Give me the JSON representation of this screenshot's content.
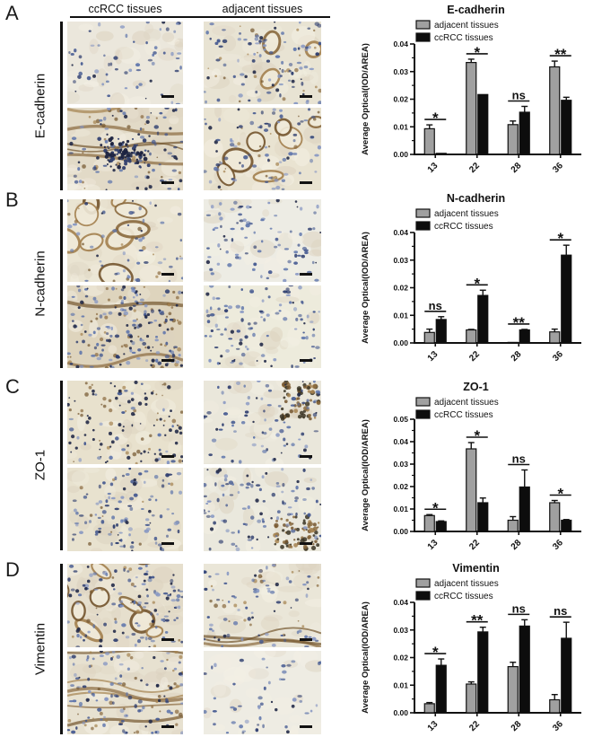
{
  "figure": {
    "column_headers": [
      "ccRCC tissues",
      "adjacent tissues"
    ],
    "panels": [
      {
        "label": "A",
        "protein": "E-cadherin"
      },
      {
        "label": "B",
        "protein": "N-cadherin"
      },
      {
        "label": "C",
        "protein": "ZO-1"
      },
      {
        "label": "D",
        "protein": "Vimentin"
      }
    ]
  },
  "colors": {
    "adjacent_bar": "#a0a0a0",
    "ccrcc_bar": "#0d0d0d",
    "axis": "#111111"
  },
  "chart_data": [
    {
      "type": "bar",
      "title": "E-cadherin",
      "ylabel": "Average Optical(IOD/AREA)",
      "ylim": [
        0,
        0.04
      ],
      "yticks": [
        "0.00",
        "0.01",
        "0.02",
        "0.03",
        "0.04"
      ],
      "categories": [
        "13",
        "22",
        "28",
        "36"
      ],
      "legend_position": "top-left-inside",
      "series": [
        {
          "name": "adjacent tissues",
          "color": "#a0a0a0",
          "values": [
            0.0093,
            0.0333,
            0.0108,
            0.0317
          ],
          "errors": [
            0.0014,
            0.0012,
            0.0013,
            0.0021
          ]
        },
        {
          "name": "ccRCC tissues",
          "color": "#0d0d0d",
          "values": [
            0.0004,
            0.0217,
            0.0153,
            0.0196
          ],
          "errors": [
            0.0,
            0.0,
            0.0021,
            0.0011
          ]
        }
      ],
      "significance": [
        "*",
        "*",
        "ns",
        "**"
      ]
    },
    {
      "type": "bar",
      "title": "N-cadherin",
      "ylabel": "Average Optical(IOD/AREA)",
      "ylim": [
        0,
        0.04
      ],
      "yticks": [
        "0.00",
        "0.01",
        "0.02",
        "0.03",
        "0.04"
      ],
      "categories": [
        "13",
        "22",
        "28",
        "36"
      ],
      "legend_position": "top-left-inside",
      "series": [
        {
          "name": "adjacent tissues",
          "color": "#a0a0a0",
          "values": [
            0.0038,
            0.0047,
            0.0002,
            0.004
          ],
          "errors": [
            0.0012,
            0.0002,
            0.0,
            0.001
          ]
        },
        {
          "name": "ccRCC tissues",
          "color": "#0d0d0d",
          "values": [
            0.0085,
            0.0172,
            0.0047,
            0.0318
          ],
          "errors": [
            0.001,
            0.0019,
            0.0002,
            0.0036
          ]
        }
      ],
      "significance": [
        "ns",
        "*",
        "**",
        "*"
      ]
    },
    {
      "type": "bar",
      "title": "ZO-1",
      "ylabel": "Average Optical(IOD/AREA)",
      "ylim": [
        0,
        0.05
      ],
      "yticks": [
        "0.00",
        "0.01",
        "0.02",
        "0.03",
        "0.04",
        "0.05"
      ],
      "categories": [
        "13",
        "22",
        "28",
        "36"
      ],
      "legend_position": "top-left-inside",
      "series": [
        {
          "name": "adjacent tissues",
          "color": "#a0a0a0",
          "values": [
            0.0071,
            0.0368,
            0.005,
            0.0128
          ],
          "errors": [
            0.0004,
            0.0028,
            0.0016,
            0.001
          ]
        },
        {
          "name": "ccRCC tissues",
          "color": "#0d0d0d",
          "values": [
            0.0044,
            0.0128,
            0.0198,
            0.005
          ],
          "errors": [
            0.0003,
            0.0021,
            0.0076,
            0.0003
          ]
        }
      ],
      "significance": [
        "*",
        "*",
        "ns",
        "*"
      ]
    },
    {
      "type": "bar",
      "title": "Vimentin",
      "ylabel": "Average Optical(IOD/AREA)",
      "ylim": [
        0,
        0.04
      ],
      "yticks": [
        "0.00",
        "0.01",
        "0.02",
        "0.03",
        "0.04"
      ],
      "categories": [
        "13",
        "22",
        "28",
        "36"
      ],
      "legend_position": "top-left-inside",
      "series": [
        {
          "name": "adjacent tissues",
          "color": "#a0a0a0",
          "values": [
            0.0033,
            0.0104,
            0.0167,
            0.0047
          ],
          "errors": [
            0.0004,
            0.0008,
            0.0016,
            0.0019
          ]
        },
        {
          "name": "ccRCC tissues",
          "color": "#0d0d0d",
          "values": [
            0.0172,
            0.0293,
            0.0314,
            0.027
          ],
          "errors": [
            0.0023,
            0.0017,
            0.0023,
            0.0058
          ]
        }
      ],
      "significance": [
        "*",
        "**",
        "ns",
        "ns"
      ]
    }
  ]
}
